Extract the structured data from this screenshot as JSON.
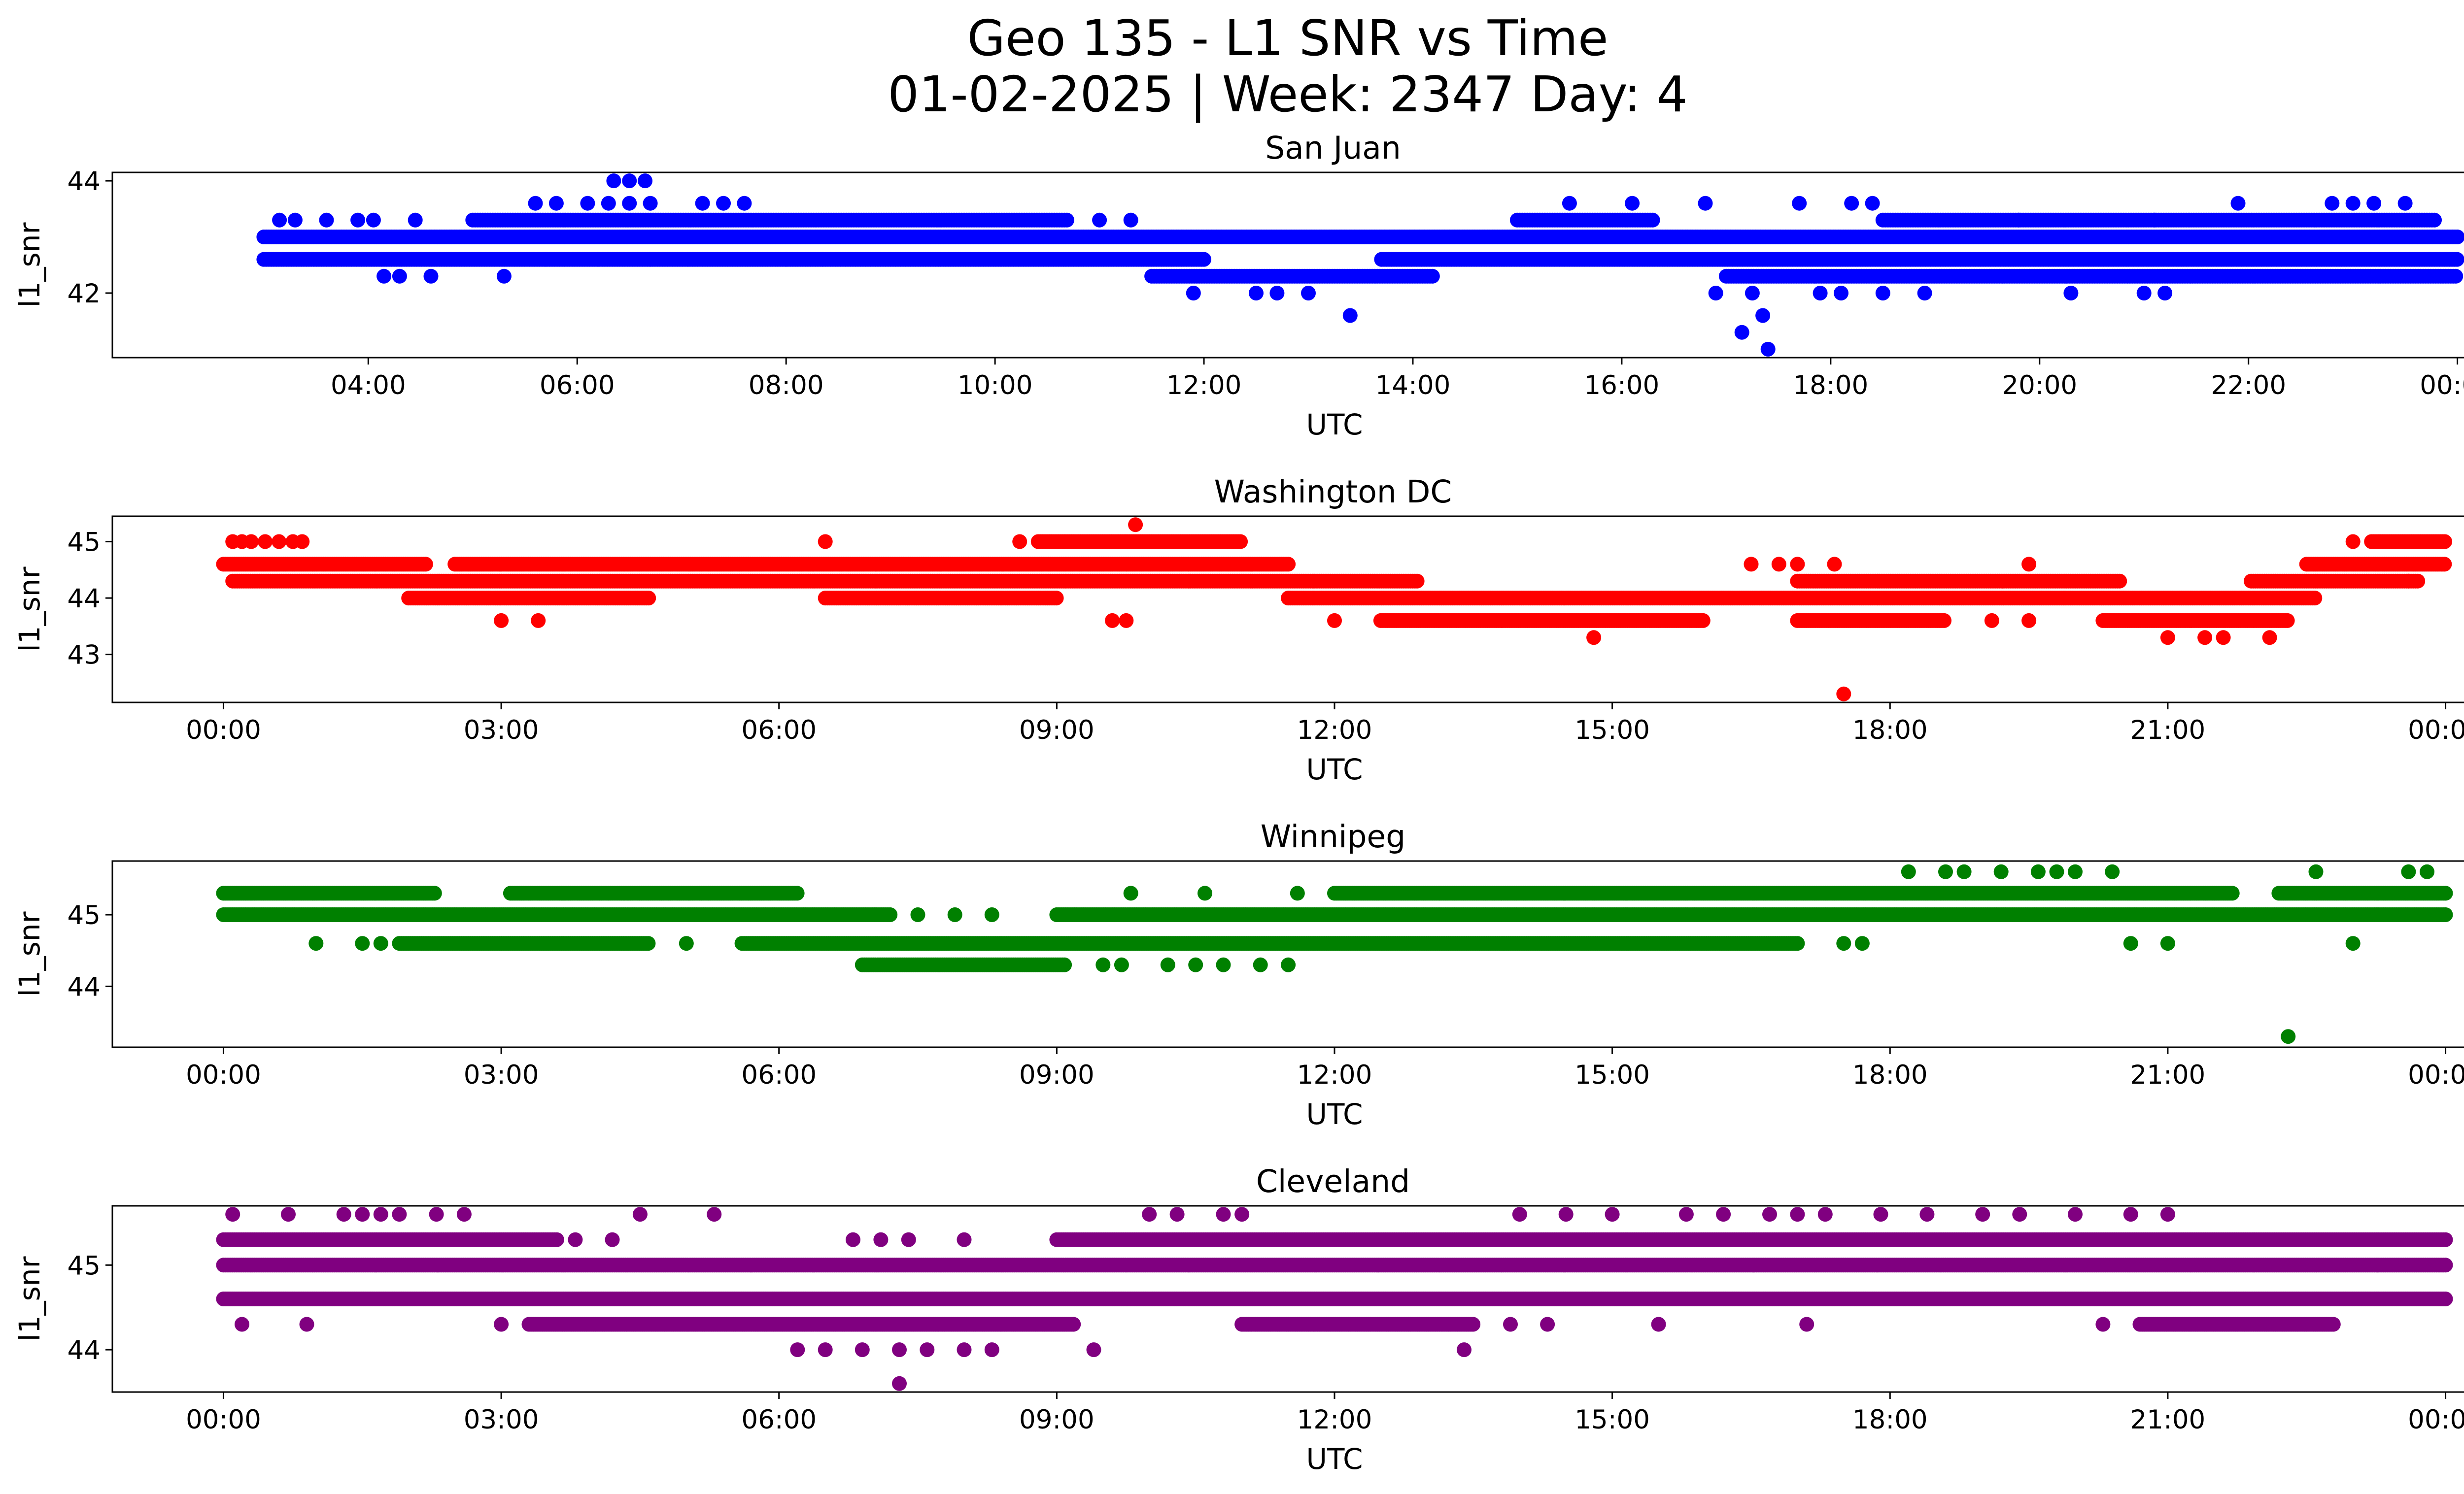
{
  "figure": {
    "title_line1": "Geo 135 - L1 SNR vs Time",
    "title_line2": "01-02-2025 | Week: 2347 Day: 4"
  },
  "chart_data": [
    {
      "type": "scatter",
      "title": "San Juan",
      "xlabel": "UTC",
      "ylabel": "l1_snr",
      "color": "#0000ff",
      "x_unit": "hours UTC",
      "xlim": [
        1.55,
        24.95
      ],
      "ylim": [
        40.85,
        44.15
      ],
      "x_ticks": [
        4,
        6,
        8,
        10,
        12,
        14,
        16,
        18,
        20,
        22,
        24
      ],
      "x_tick_labels": [
        "04:00",
        "06:00",
        "08:00",
        "10:00",
        "12:00",
        "14:00",
        "16:00",
        "18:00",
        "20:00",
        "22:00",
        "00:00"
      ],
      "y_ticks": [
        42,
        44
      ],
      "y_tick_labels": [
        "42",
        "44"
      ],
      "bands": [
        {
          "y": 43.0,
          "segments": [
            [
              3.0,
              24.0
            ]
          ]
        },
        {
          "y": 42.6,
          "segments": [
            [
              3.0,
              12.0
            ],
            [
              13.7,
              24.0
            ]
          ]
        },
        {
          "y": 42.3,
          "segments": [
            [
              11.5,
              14.2
            ],
            [
              17.0,
              24.0
            ]
          ]
        },
        {
          "y": 43.3,
          "segments": [
            [
              5.0,
              10.7
            ],
            [
              15.0,
              16.3
            ],
            [
              18.5,
              23.8
            ]
          ]
        }
      ],
      "points": [
        [
          3.15,
          43.3
        ],
        [
          3.3,
          43.3
        ],
        [
          3.6,
          43.3
        ],
        [
          3.9,
          43.3
        ],
        [
          4.05,
          43.3
        ],
        [
          4.45,
          43.3
        ],
        [
          4.15,
          42.3
        ],
        [
          4.3,
          42.3
        ],
        [
          4.6,
          42.3
        ],
        [
          5.3,
          42.3
        ],
        [
          5.6,
          43.6
        ],
        [
          5.8,
          43.6
        ],
        [
          5.7,
          42.6
        ],
        [
          6.2,
          42.6
        ],
        [
          6.1,
          43.6
        ],
        [
          6.3,
          43.6
        ],
        [
          6.5,
          43.6
        ],
        [
          6.7,
          43.6
        ],
        [
          6.35,
          44.0
        ],
        [
          6.5,
          44.0
        ],
        [
          6.65,
          44.0
        ],
        [
          6.7,
          42.6
        ],
        [
          7.2,
          43.6
        ],
        [
          7.4,
          43.6
        ],
        [
          7.6,
          43.6
        ],
        [
          8.0,
          42.6
        ],
        [
          8.35,
          42.6
        ],
        [
          11.0,
          43.3
        ],
        [
          11.3,
          43.3
        ],
        [
          11.9,
          42.0
        ],
        [
          12.5,
          42.0
        ],
        [
          12.7,
          42.0
        ],
        [
          13.0,
          42.0
        ],
        [
          13.4,
          41.6
        ],
        [
          15.5,
          43.6
        ],
        [
          16.1,
          43.6
        ],
        [
          16.8,
          43.6
        ],
        [
          17.7,
          43.6
        ],
        [
          18.2,
          43.6
        ],
        [
          18.4,
          43.6
        ],
        [
          16.9,
          42.0
        ],
        [
          17.25,
          42.0
        ],
        [
          17.15,
          41.3
        ],
        [
          17.35,
          41.6
        ],
        [
          17.4,
          41.0
        ],
        [
          17.9,
          42.0
        ],
        [
          18.1,
          42.0
        ],
        [
          18.5,
          42.0
        ],
        [
          18.9,
          42.0
        ],
        [
          19.8,
          43.3
        ],
        [
          20.3,
          42.0
        ],
        [
          21.0,
          42.0
        ],
        [
          21.2,
          42.0
        ],
        [
          21.1,
          43.3
        ],
        [
          21.9,
          43.6
        ],
        [
          22.8,
          43.6
        ],
        [
          23.0,
          43.6
        ],
        [
          23.2,
          43.6
        ],
        [
          23.5,
          43.6
        ]
      ]
    },
    {
      "type": "scatter",
      "title": "Washington DC",
      "xlabel": "UTC",
      "ylabel": "l1_snr",
      "color": "#ff0000",
      "x_unit": "hours UTC",
      "xlim": [
        -1.2,
        25.2
      ],
      "ylim": [
        42.15,
        45.45
      ],
      "x_ticks": [
        0,
        3,
        6,
        9,
        12,
        15,
        18,
        21,
        24
      ],
      "x_tick_labels": [
        "00:00",
        "03:00",
        "06:00",
        "09:00",
        "12:00",
        "15:00",
        "18:00",
        "21:00",
        "00:00"
      ],
      "y_ticks": [
        43,
        44,
        45
      ],
      "y_tick_labels": [
        "43",
        "44",
        "45"
      ],
      "bands": [
        {
          "y": 44.6,
          "segments": [
            [
              0.0,
              2.2
            ],
            [
              2.5,
              11.5
            ],
            [
              22.5,
              24.0
            ]
          ]
        },
        {
          "y": 44.3,
          "segments": [
            [
              0.1,
              12.9
            ],
            [
              17.0,
              20.5
            ],
            [
              21.9,
              23.7
            ]
          ]
        },
        {
          "y": 44.0,
          "segments": [
            [
              2.0,
              4.6
            ],
            [
              6.5,
              9.0
            ],
            [
              11.5,
              22.6
            ]
          ]
        },
        {
          "y": 43.6,
          "segments": [
            [
              12.5,
              16.0
            ],
            [
              17.0,
              18.6
            ],
            [
              20.3,
              22.3
            ]
          ]
        },
        {
          "y": 45.0,
          "segments": [
            [
              8.8,
              11.0
            ],
            [
              23.2,
              24.0
            ]
          ]
        }
      ],
      "points": [
        [
          0.1,
          45.0
        ],
        [
          0.2,
          45.0
        ],
        [
          0.3,
          45.0
        ],
        [
          0.45,
          45.0
        ],
        [
          0.6,
          45.0
        ],
        [
          0.75,
          45.0
        ],
        [
          0.85,
          45.0
        ],
        [
          6.5,
          45.0
        ],
        [
          8.6,
          45.0
        ],
        [
          9.85,
          45.3
        ],
        [
          3.0,
          43.6
        ],
        [
          3.4,
          43.6
        ],
        [
          9.6,
          43.6
        ],
        [
          9.75,
          43.6
        ],
        [
          12.0,
          43.6
        ],
        [
          14.8,
          43.3
        ],
        [
          16.5,
          44.6
        ],
        [
          16.8,
          44.6
        ],
        [
          17.0,
          44.6
        ],
        [
          17.4,
          44.6
        ],
        [
          17.5,
          42.3
        ],
        [
          19.5,
          44.6
        ],
        [
          19.1,
          43.6
        ],
        [
          19.5,
          43.6
        ],
        [
          21.0,
          43.3
        ],
        [
          21.4,
          43.3
        ],
        [
          21.6,
          43.3
        ],
        [
          22.1,
          43.3
        ],
        [
          23.0,
          45.0
        ],
        [
          23.6,
          44.3
        ]
      ]
    },
    {
      "type": "scatter",
      "title": "Winnipeg",
      "xlabel": "UTC",
      "ylabel": "l1_snr",
      "color": "#008000",
      "x_unit": "hours UTC",
      "xlim": [
        -1.2,
        25.2
      ],
      "ylim": [
        43.15,
        45.75
      ],
      "x_ticks": [
        0,
        3,
        6,
        9,
        12,
        15,
        18,
        21,
        24
      ],
      "x_tick_labels": [
        "00:00",
        "03:00",
        "06:00",
        "09:00",
        "12:00",
        "15:00",
        "18:00",
        "21:00",
        "00:00"
      ],
      "y_ticks": [
        44,
        45
      ],
      "y_tick_labels": [
        "44",
        "45"
      ],
      "bands": [
        {
          "y": 45.3,
          "segments": [
            [
              0.0,
              2.3
            ],
            [
              3.1,
              6.2
            ],
            [
              12.0,
              21.7
            ],
            [
              22.2,
              24.0
            ]
          ]
        },
        {
          "y": 45.0,
          "segments": [
            [
              0.0,
              7.2
            ],
            [
              9.0,
              24.0
            ]
          ]
        },
        {
          "y": 44.6,
          "segments": [
            [
              1.9,
              4.6
            ],
            [
              5.6,
              17.0
            ]
          ]
        },
        {
          "y": 44.3,
          "segments": [
            [
              6.9,
              9.1
            ]
          ]
        }
      ],
      "points": [
        [
          1.0,
          44.6
        ],
        [
          1.5,
          44.6
        ],
        [
          1.7,
          44.6
        ],
        [
          5.0,
          44.6
        ],
        [
          7.5,
          45.0
        ],
        [
          7.9,
          45.0
        ],
        [
          8.3,
          45.0
        ],
        [
          9.8,
          45.3
        ],
        [
          10.6,
          45.3
        ],
        [
          11.6,
          45.3
        ],
        [
          9.5,
          44.3
        ],
        [
          9.7,
          44.3
        ],
        [
          10.2,
          44.3
        ],
        [
          10.5,
          44.3
        ],
        [
          10.8,
          44.3
        ],
        [
          11.2,
          44.3
        ],
        [
          11.5,
          44.3
        ],
        [
          17.5,
          44.6
        ],
        [
          17.7,
          44.6
        ],
        [
          18.2,
          45.6
        ],
        [
          18.6,
          45.6
        ],
        [
          18.8,
          45.6
        ],
        [
          19.2,
          45.6
        ],
        [
          19.6,
          45.6
        ],
        [
          19.8,
          45.6
        ],
        [
          20.0,
          45.6
        ],
        [
          20.4,
          45.6
        ],
        [
          20.6,
          44.6
        ],
        [
          21.0,
          44.6
        ],
        [
          22.3,
          43.3
        ],
        [
          22.6,
          45.6
        ],
        [
          23.0,
          44.6
        ],
        [
          23.6,
          45.6
        ],
        [
          23.8,
          45.6
        ]
      ]
    },
    {
      "type": "scatter",
      "title": "Cleveland",
      "xlabel": "UTC",
      "ylabel": "l1_snr",
      "color": "#800080",
      "x_unit": "hours UTC",
      "xlim": [
        -1.2,
        25.2
      ],
      "ylim": [
        43.5,
        45.7
      ],
      "x_ticks": [
        0,
        3,
        6,
        9,
        12,
        15,
        18,
        21,
        24
      ],
      "x_tick_labels": [
        "00:00",
        "03:00",
        "06:00",
        "09:00",
        "12:00",
        "15:00",
        "18:00",
        "21:00",
        "00:00"
      ],
      "y_ticks": [
        44,
        45
      ],
      "y_tick_labels": [
        "44",
        "45"
      ],
      "bands": [
        {
          "y": 45.3,
          "segments": [
            [
              0.0,
              3.6
            ],
            [
              9.0,
              24.0
            ]
          ]
        },
        {
          "y": 45.0,
          "segments": [
            [
              0.0,
              24.0
            ]
          ]
        },
        {
          "y": 44.6,
          "segments": [
            [
              0.0,
              24.0
            ]
          ]
        },
        {
          "y": 44.3,
          "segments": [
            [
              3.3,
              9.2
            ],
            [
              11.0,
              13.5
            ],
            [
              20.7,
              22.8
            ]
          ]
        }
      ],
      "points": [
        [
          0.1,
          45.6
        ],
        [
          0.7,
          45.6
        ],
        [
          1.3,
          45.6
        ],
        [
          1.5,
          45.6
        ],
        [
          1.7,
          45.6
        ],
        [
          1.9,
          45.6
        ],
        [
          2.3,
          45.6
        ],
        [
          2.6,
          45.6
        ],
        [
          4.5,
          45.6
        ],
        [
          5.3,
          45.6
        ],
        [
          0.2,
          44.3
        ],
        [
          0.9,
          44.3
        ],
        [
          3.0,
          44.3
        ],
        [
          3.8,
          45.3
        ],
        [
          4.2,
          45.3
        ],
        [
          6.8,
          45.3
        ],
        [
          7.1,
          45.3
        ],
        [
          7.4,
          45.3
        ],
        [
          8.0,
          45.3
        ],
        [
          6.2,
          44.0
        ],
        [
          6.5,
          44.0
        ],
        [
          6.9,
          44.0
        ],
        [
          7.3,
          44.0
        ],
        [
          7.6,
          44.0
        ],
        [
          8.0,
          44.0
        ],
        [
          8.3,
          44.0
        ],
        [
          9.4,
          44.0
        ],
        [
          7.3,
          43.6
        ],
        [
          10.0,
          45.6
        ],
        [
          10.3,
          45.6
        ],
        [
          10.8,
          45.6
        ],
        [
          11.0,
          45.6
        ],
        [
          13.4,
          44.0
        ],
        [
          13.9,
          44.3
        ],
        [
          14.3,
          44.3
        ],
        [
          15.5,
          44.3
        ],
        [
          14.0,
          45.6
        ],
        [
          14.5,
          45.6
        ],
        [
          15.0,
          45.6
        ],
        [
          15.8,
          45.6
        ],
        [
          16.2,
          45.6
        ],
        [
          16.7,
          45.6
        ],
        [
          17.0,
          45.6
        ],
        [
          17.3,
          45.6
        ],
        [
          17.1,
          44.3
        ],
        [
          17.9,
          45.6
        ],
        [
          18.4,
          45.6
        ],
        [
          19.0,
          45.6
        ],
        [
          19.4,
          45.6
        ],
        [
          20.0,
          45.6
        ],
        [
          20.3,
          44.3
        ],
        [
          20.6,
          45.6
        ],
        [
          21.0,
          45.6
        ]
      ]
    }
  ]
}
